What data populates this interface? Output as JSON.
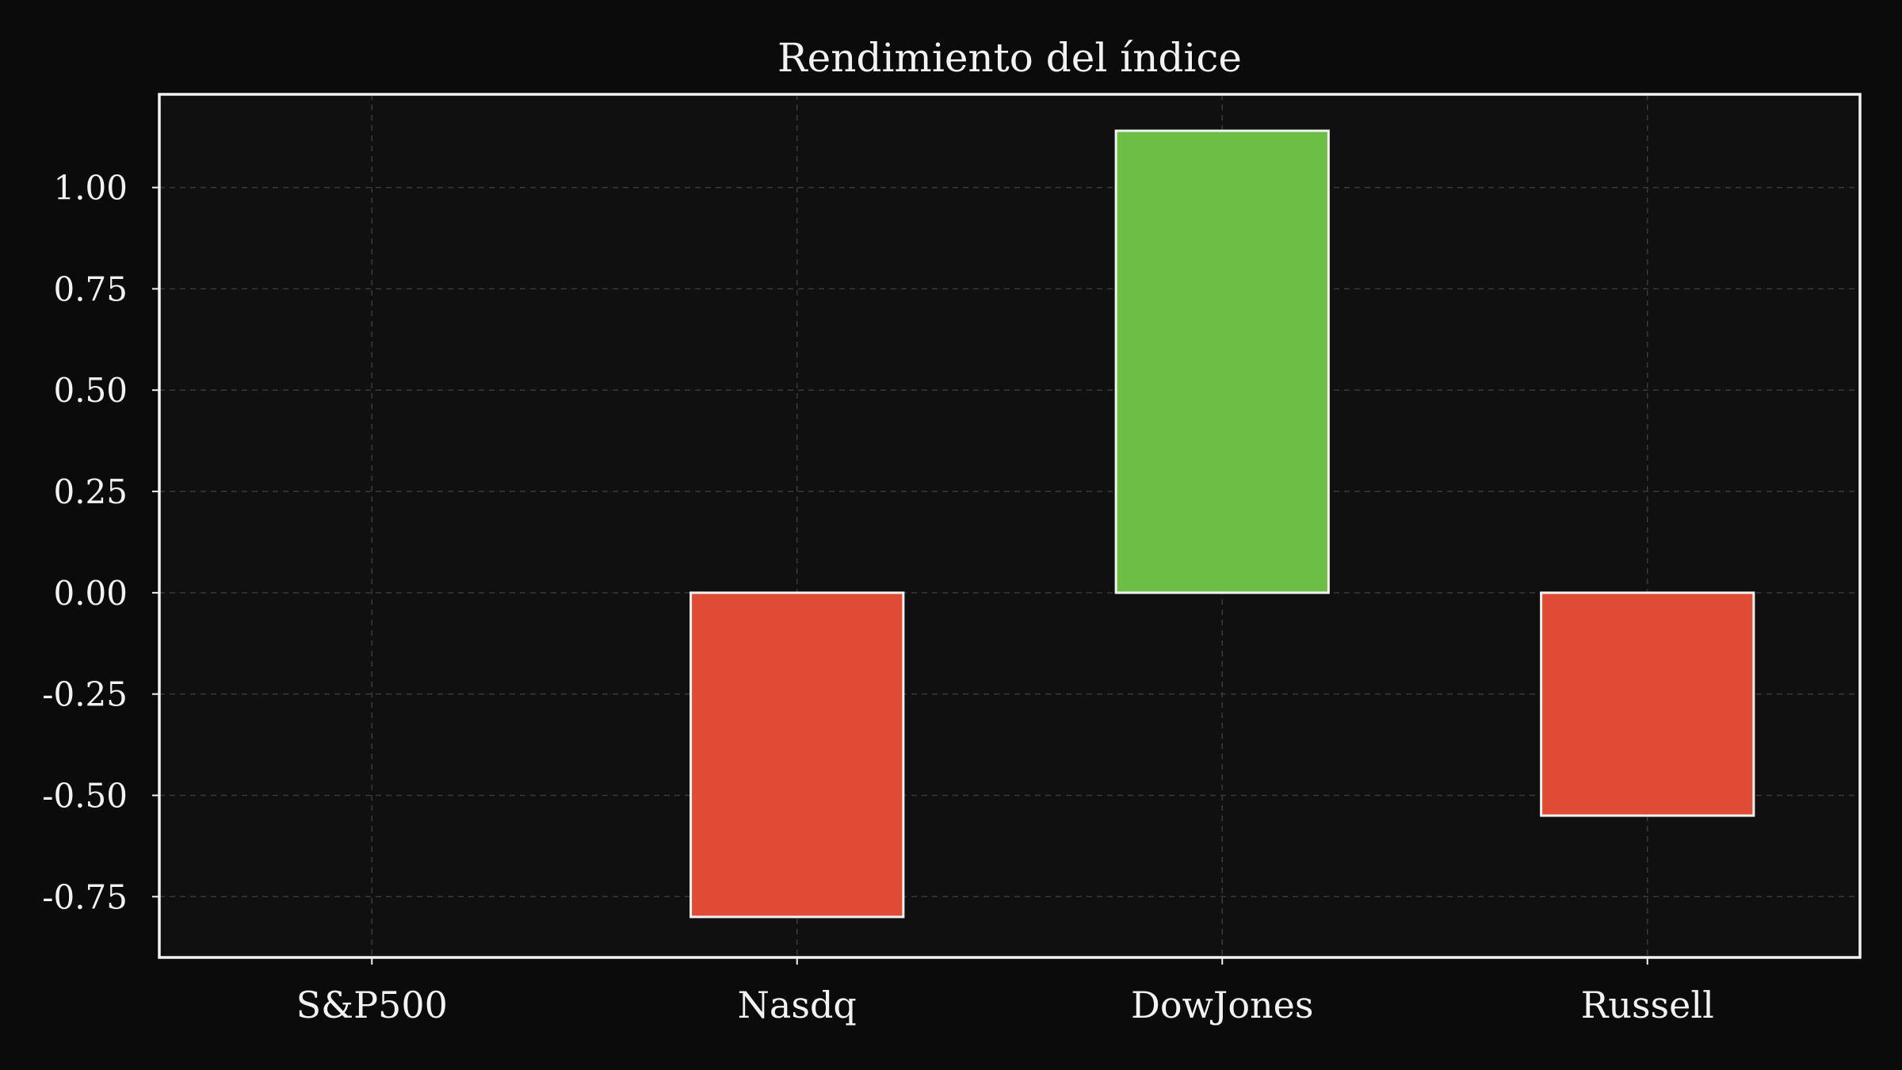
{
  "chart_data": {
    "type": "bar",
    "title": "Rendimiento del índice",
    "xlabel": "",
    "ylabel": "",
    "categories": [
      "S&P500",
      "Nasdq",
      "DowJones",
      "Russell"
    ],
    "values": [
      0.0,
      -0.8,
      1.14,
      -0.55
    ],
    "ylim": [
      -0.9,
      1.23
    ],
    "yticks": [
      -0.75,
      -0.5,
      -0.25,
      0.0,
      0.25,
      0.5,
      0.75,
      1.0
    ],
    "ytick_labels": [
      "-0.75",
      "-0.50",
      "-0.25",
      "0.00",
      "0.25",
      "0.50",
      "0.75",
      "1.00"
    ],
    "grid": true,
    "colors": {
      "positive": "#6dbe45",
      "negative": "#e04b35",
      "bar_edge": "#f2f2f2",
      "plot_background": "#101010",
      "page_background": "#0b0b0b",
      "frame": "#f2f2f2",
      "grid": "#3a3a3a",
      "text": "#f2f2f2"
    }
  }
}
